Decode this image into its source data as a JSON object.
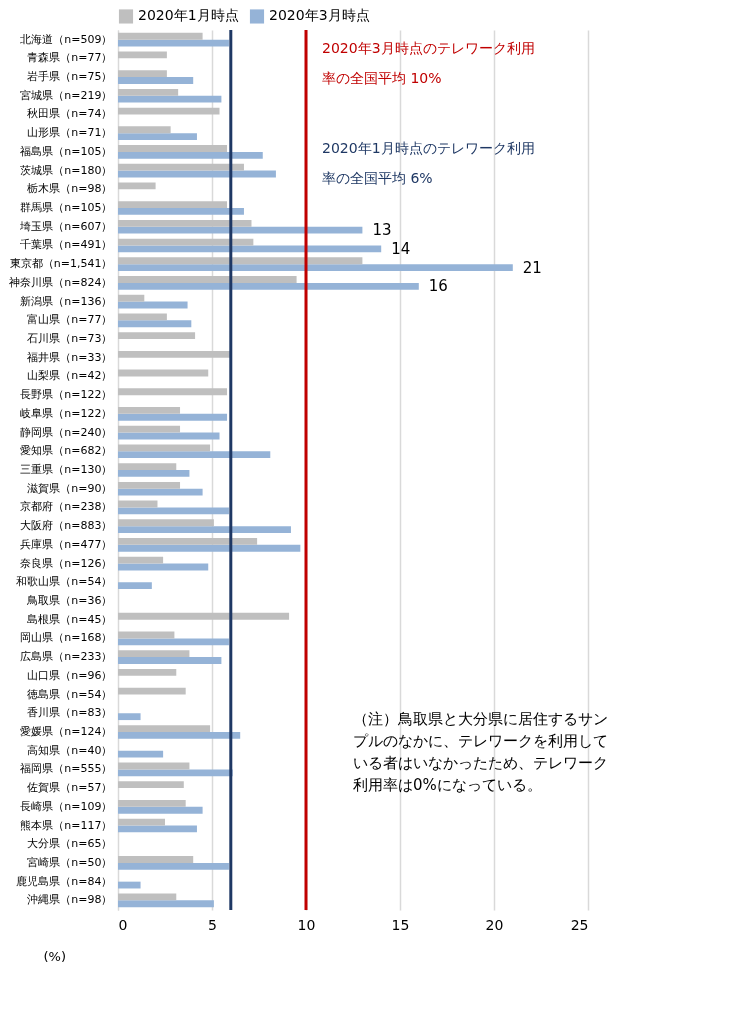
{
  "chart_data": {
    "type": "bar",
    "orientation": "horizontal",
    "categories": [
      "北海道（n=509）",
      "青森県（n=77）",
      "岩手県（n=75）",
      "宮城県（n=219）",
      "秋田県（n=74）",
      "山形県（n=71）",
      "福島県（n=105）",
      "茨城県（n=180）",
      "栃木県（n=98）",
      "群馬県（n=105）",
      "埼玉県（n=607）",
      "千葉県（n=491）",
      "東京都（n=1,541）",
      "神奈川県（n=824）",
      "新潟県（n=136）",
      "富山県（n=77）",
      "石川県（n=73）",
      "福井県（n=33）",
      "山梨県（n=42）",
      "長野県（n=122）",
      "岐阜県（n=122）",
      "静岡県（n=240）",
      "愛知県（n=682）",
      "三重県（n=130）",
      "滋賀県（n=90）",
      "京都府（n=238）",
      "大阪府（n=883）",
      "兵庫県（n=477）",
      "奈良県（n=126）",
      "和歌山県（n=54）",
      "鳥取県（n=36）",
      "島根県（n=45）",
      "岡山県（n=168）",
      "広島県（n=233）",
      "山口県（n=96）",
      "徳島県（n=54）",
      "香川県（n=83）",
      "愛媛県（n=124）",
      "高知県（n=40）",
      "福岡県（n=555）",
      "佐賀県（n=57）",
      "長崎県（n=109）",
      "熊本県（n=117）",
      "大分県（n=65）",
      "宮崎県（n=50）",
      "鹿児島県（n=84）",
      "沖縄県（n=98）"
    ],
    "series": [
      {
        "name": "2020年1月時点",
        "color": "#bfbfbf",
        "values": [
          4.5,
          2.6,
          2.6,
          3.2,
          5.4,
          2.8,
          5.8,
          6.7,
          2.0,
          5.8,
          7.1,
          7.2,
          13.0,
          9.5,
          1.4,
          2.6,
          4.1,
          6.0,
          4.8,
          5.8,
          3.3,
          3.3,
          4.9,
          3.1,
          3.3,
          2.1,
          5.1,
          7.4,
          2.4,
          0,
          0,
          9.1,
          3.0,
          3.8,
          3.1,
          3.6,
          0,
          4.9,
          0,
          3.8,
          3.5,
          3.6,
          2.5,
          0,
          4.0,
          0,
          3.1
        ]
      },
      {
        "name": "2020年3月時点",
        "color": "#95b3d7",
        "values": [
          5.9,
          null,
          4.0,
          5.5,
          null,
          4.2,
          7.7,
          8.4,
          null,
          6.7,
          13,
          14,
          21,
          16,
          3.7,
          3.9,
          null,
          null,
          null,
          null,
          5.8,
          5.4,
          8.1,
          3.8,
          4.5,
          5.9,
          9.2,
          9.7,
          4.8,
          1.8,
          0,
          null,
          5.9,
          5.5,
          null,
          null,
          1.2,
          6.5,
          2.4,
          6.1,
          null,
          4.5,
          4.2,
          0,
          5.9,
          1.2,
          5.1
        ],
        "value_labels": [
          null,
          null,
          null,
          null,
          null,
          null,
          null,
          null,
          null,
          null,
          "13",
          "14",
          "21",
          "16",
          null,
          null,
          null,
          null,
          null,
          null,
          null,
          null,
          null,
          null,
          null,
          null,
          null,
          null,
          null,
          null,
          null,
          null,
          null,
          null,
          null,
          null,
          null,
          null,
          null,
          null,
          null,
          null,
          null,
          null,
          null,
          null,
          null
        ]
      }
    ],
    "xlim": [
      0,
      25
    ],
    "xticks": [
      0,
      5,
      10,
      15,
      20,
      25
    ],
    "xlabel": "(%)",
    "grid": "x",
    "legend": "top",
    "ref_lines": [
      {
        "axis": "x",
        "value": 10,
        "label": "2020年3月時点のテレワーク利用率の全国平均 10%",
        "color": "#c00000"
      },
      {
        "axis": "x",
        "value": 6,
        "label": "2020年1月時点のテレワーク利用率の全国平均 6%",
        "color": "#1f3864"
      }
    ],
    "annotations": [
      "（注）鳥取県と大分県に居住するサンプルのなかに、テレワークを利用している者はいなかったため、テレワーク利用率は0%になっている。"
    ]
  }
}
